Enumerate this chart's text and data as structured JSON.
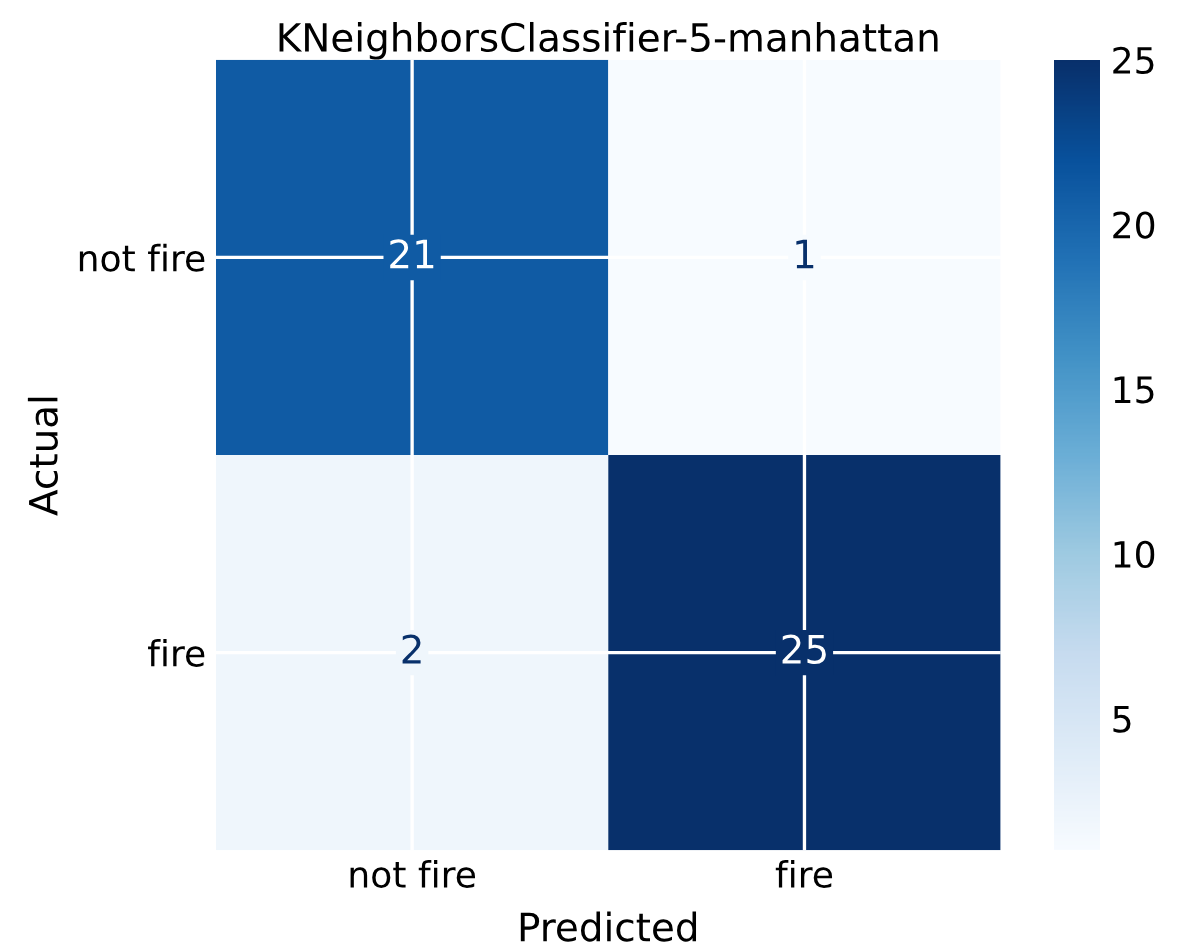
{
  "chart_data": {
    "type": "heatmap",
    "title": "KNeighborsClassifier-5-manhattan",
    "xlabel": "Predicted",
    "ylabel": "Actual",
    "categories": [
      "not fire",
      "fire"
    ],
    "y_categories": [
      "not fire",
      "fire"
    ],
    "cells": [
      [
        21,
        1
      ],
      [
        2,
        25
      ]
    ],
    "data_labels": true,
    "clim": [
      1,
      25
    ],
    "cticks": [
      5,
      10,
      15,
      20,
      25
    ],
    "grid": true
  }
}
